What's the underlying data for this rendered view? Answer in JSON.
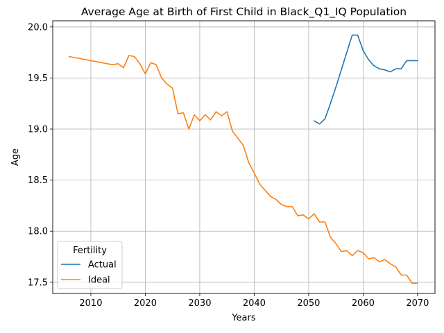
{
  "chart_data": {
    "type": "line",
    "title": "Average Age at Birth of First Child in Black_Q1_IQ Population",
    "xlabel": "Years",
    "ylabel": "Age",
    "xlim": [
      2003,
      2073.2
    ],
    "ylim": [
      17.39,
      20.06
    ],
    "x_ticks": [
      2010,
      2020,
      2030,
      2040,
      2050,
      2060,
      2070
    ],
    "y_ticks": [
      17.5,
      18.0,
      18.5,
      19.0,
      19.5,
      20.0
    ],
    "x_tick_labels": [
      "2010",
      "2020",
      "2030",
      "2040",
      "2050",
      "2060",
      "2070"
    ],
    "y_tick_labels": [
      "17.5",
      "18.0",
      "18.5",
      "19.0",
      "19.5",
      "20.0"
    ],
    "grid": true,
    "legend": {
      "title": "Fertility",
      "placement": "lower-left"
    },
    "series": [
      {
        "name": "Actual",
        "color": "#1f77b4",
        "x": [
          2051,
          2052,
          2053,
          2054,
          2055,
          2056,
          2057,
          2058,
          2059,
          2060,
          2061,
          2062,
          2063,
          2064,
          2065,
          2066,
          2067,
          2068,
          2069,
          2070
        ],
        "y": [
          19.08,
          19.05,
          19.1,
          19.25,
          19.41,
          19.58,
          19.75,
          19.92,
          19.92,
          19.77,
          19.68,
          19.62,
          19.59,
          19.58,
          19.56,
          19.59,
          19.59,
          19.67,
          19.67,
          19.67
        ]
      },
      {
        "name": "Ideal",
        "color": "#ff7f0e",
        "x": [
          2006,
          2014,
          2015,
          2016,
          2017,
          2018,
          2019,
          2020,
          2021,
          2022,
          2023,
          2024,
          2025,
          2026,
          2027,
          2028,
          2029,
          2030,
          2031,
          2032,
          2033,
          2034,
          2035,
          2036,
          2037,
          2038,
          2039,
          2040,
          2041,
          2042,
          2043,
          2044,
          2045,
          2046,
          2047,
          2048,
          2049,
          2050,
          2051,
          2052,
          2053,
          2054,
          2055,
          2056,
          2057,
          2058,
          2059,
          2060,
          2061,
          2062,
          2063,
          2064,
          2065,
          2066,
          2067,
          2068,
          2069,
          2070
        ],
        "y": [
          19.71,
          19.63,
          19.64,
          19.6,
          19.72,
          19.71,
          19.64,
          19.54,
          19.65,
          19.63,
          19.5,
          19.44,
          19.4,
          19.15,
          19.16,
          19.0,
          19.14,
          19.08,
          19.14,
          19.09,
          19.17,
          19.13,
          19.17,
          18.98,
          18.91,
          18.84,
          18.67,
          18.57,
          18.46,
          18.4,
          18.34,
          18.31,
          18.26,
          18.24,
          18.24,
          18.15,
          18.16,
          18.12,
          18.17,
          18.09,
          18.09,
          17.94,
          17.88,
          17.8,
          17.81,
          17.76,
          17.81,
          17.79,
          17.73,
          17.74,
          17.7,
          17.72,
          17.68,
          17.65,
          17.57,
          17.57,
          17.49,
          17.49
        ]
      }
    ]
  }
}
